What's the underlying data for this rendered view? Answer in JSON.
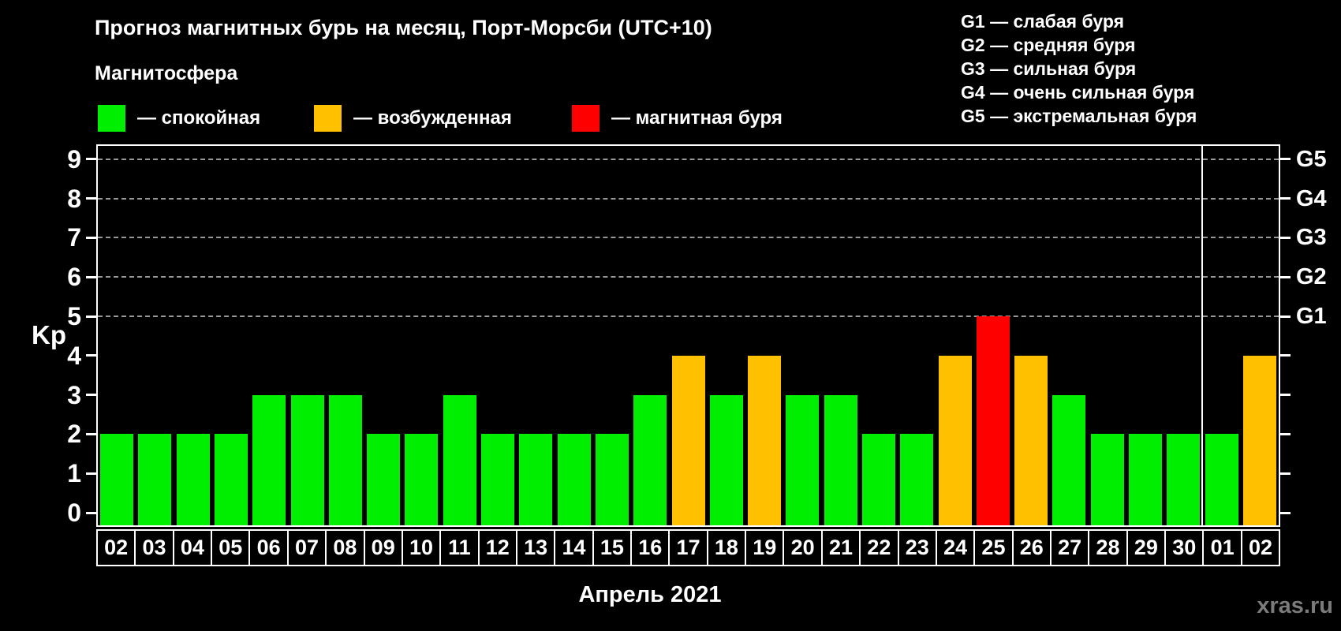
{
  "title": "Прогноз магнитных бурь на месяц, Порт-Морсби (UTC+10)",
  "watermark": "xras.ru",
  "legend": {
    "heading": "Магнитосфера",
    "items": [
      {
        "state": "quiet",
        "label": "— спокойная",
        "color": "#00ee00"
      },
      {
        "state": "excited",
        "label": "— возбужденная",
        "color": "#ffc000"
      },
      {
        "state": "storm",
        "label": "— магнитная буря",
        "color": "#ff0000"
      }
    ]
  },
  "g_scale_legend": [
    "G1 — слабая буря",
    "G2 — средняя буря",
    "G3 — сильная буря",
    "G4 — очень сильная буря",
    "G5 — экстремальная буря"
  ],
  "chart_data": {
    "type": "bar",
    "title": "Прогноз магнитных бурь на месяц, Порт-Морсби (UTC+10)",
    "xlabel": "Апрель 2021",
    "ylabel": "Kp",
    "ylim": [
      0,
      9
    ],
    "yticks": [
      0,
      1,
      2,
      3,
      4,
      5,
      6,
      7,
      8,
      9
    ],
    "gridlines_at": [
      5,
      6,
      7,
      8,
      9
    ],
    "grid": "dashed",
    "legend_position": "top",
    "right_axis_labels": [
      {
        "label": "G1",
        "kp": 5
      },
      {
        "label": "G2",
        "kp": 6
      },
      {
        "label": "G3",
        "kp": 7
      },
      {
        "label": "G4",
        "kp": 8
      },
      {
        "label": "G5",
        "kp": 9
      }
    ],
    "month_break_after_index": 28,
    "categories": [
      "02",
      "03",
      "04",
      "05",
      "06",
      "07",
      "08",
      "09",
      "10",
      "11",
      "12",
      "13",
      "14",
      "15",
      "16",
      "17",
      "18",
      "19",
      "20",
      "21",
      "22",
      "23",
      "24",
      "25",
      "26",
      "27",
      "28",
      "29",
      "30",
      "01",
      "02"
    ],
    "series": [
      {
        "name": "Kp",
        "values": [
          2,
          2,
          2,
          2,
          3,
          3,
          3,
          2,
          2,
          3,
          2,
          2,
          2,
          2,
          3,
          4,
          3,
          4,
          3,
          3,
          2,
          2,
          4,
          5,
          4,
          3,
          2,
          2,
          2,
          2,
          4
        ]
      }
    ],
    "bar_states": [
      "quiet",
      "quiet",
      "quiet",
      "quiet",
      "quiet",
      "quiet",
      "quiet",
      "quiet",
      "quiet",
      "quiet",
      "quiet",
      "quiet",
      "quiet",
      "quiet",
      "quiet",
      "excited",
      "quiet",
      "excited",
      "quiet",
      "quiet",
      "quiet",
      "quiet",
      "excited",
      "storm",
      "excited",
      "quiet",
      "quiet",
      "quiet",
      "quiet",
      "quiet",
      "excited"
    ],
    "colors": {
      "quiet": "#00ee00",
      "excited": "#ffc000",
      "storm": "#ff0000"
    }
  }
}
